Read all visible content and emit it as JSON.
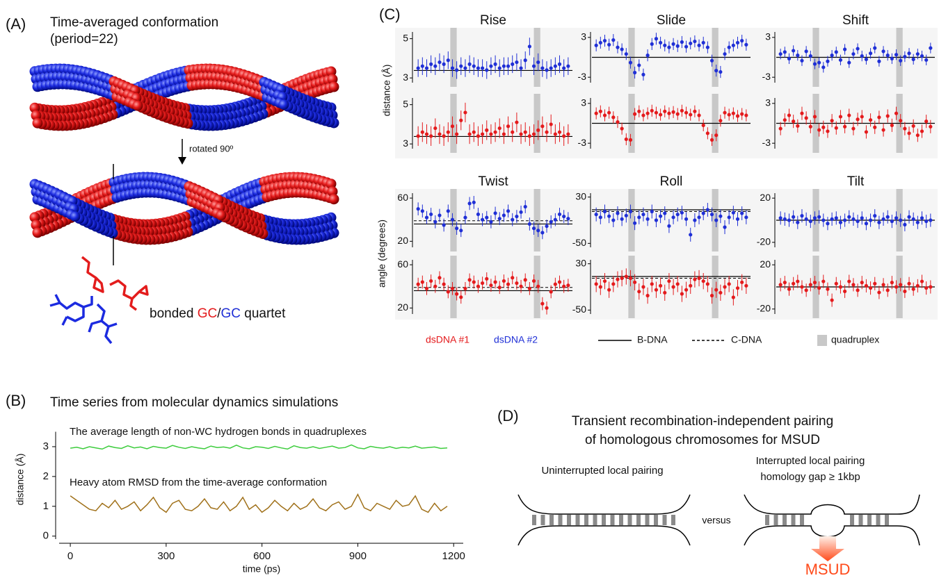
{
  "panel_a": {
    "label": "(A)",
    "title": "Time-averaged conformation",
    "subtitle": "(period=22)",
    "rotation_note": "rotated 90º",
    "quartet_label": [
      "bonded ",
      "GC",
      "/",
      "GC",
      " quartet"
    ]
  },
  "panel_b": {
    "label": "(B)"
  },
  "panel_c": {
    "label": "(C)",
    "y_labels": [
      "distance (Å)",
      "angle (degrees)"
    ],
    "legend": [
      {
        "name": "dsDNA #1",
        "color": "#e41a1c"
      },
      {
        "name": "dsDNA #2",
        "color": "#1f2fd6"
      },
      {
        "name": "B-DNA",
        "style": "solid"
      },
      {
        "name": "C-DNA",
        "style": "dashed"
      },
      {
        "name": "quadruplex",
        "color": "#c8c8c8"
      }
    ]
  },
  "panel_d": {
    "label": "(D)",
    "title": [
      "Transient recombination-independent pairing",
      "of homologous chromosomes for MSUD"
    ],
    "left_caption": "Uninterrupted local pairing",
    "right_caption": [
      "Interrupted local pairing",
      "homology gap ≥ 1kbp"
    ],
    "versus": "versus",
    "outcome": "MSUD"
  },
  "chart_data": [
    {
      "type": "line",
      "title": "Time series from molecular dynamics simulations",
      "xlabel": "time (ps)",
      "ylabel": "distance (Å)",
      "xlim": [
        -35,
        1230
      ],
      "ylim": [
        -0.1,
        3.5
      ],
      "xticks": [
        0,
        300,
        600,
        900,
        1200
      ],
      "yticks": [
        0,
        1,
        2,
        3
      ],
      "x": [
        0,
        20,
        40,
        60,
        80,
        100,
        120,
        140,
        160,
        180,
        200,
        220,
        240,
        260,
        280,
        300,
        320,
        340,
        360,
        380,
        400,
        420,
        440,
        460,
        480,
        500,
        520,
        540,
        560,
        580,
        600,
        620,
        640,
        660,
        680,
        700,
        720,
        740,
        760,
        780,
        800,
        820,
        840,
        860,
        880,
        900,
        920,
        940,
        960,
        980,
        1000,
        1020,
        1040,
        1060,
        1080,
        1100,
        1120,
        1140,
        1160,
        1180
      ],
      "series": [
        {
          "name": "The average length of non-WC hydrogen bonds in quadruplexes",
          "color": "#3ccc3c",
          "values": [
            2.95,
            2.98,
            2.93,
            3.0,
            2.96,
            2.92,
            3.02,
            2.97,
            2.94,
            3.03,
            2.96,
            2.99,
            2.93,
            3.01,
            2.97,
            2.95,
            3.04,
            2.98,
            2.94,
            3.0,
            2.96,
            2.93,
            3.02,
            2.97,
            2.99,
            2.95,
            3.05,
            2.96,
            2.93,
            3.0,
            2.98,
            2.94,
            3.01,
            2.96,
            2.92,
            3.03,
            2.97,
            2.95,
            3.0,
            2.94,
            2.98,
            3.02,
            2.95,
            2.97,
            3.06,
            2.96,
            2.93,
            3.01,
            2.97,
            2.95,
            3.0,
            2.94,
            2.98,
            2.96,
            3.02,
            2.95,
            2.97,
            2.99,
            2.94,
            2.96
          ]
        },
        {
          "name": "Heavy atom RMSD from the time-average conformation",
          "color": "#a0711a",
          "values": [
            1.35,
            1.2,
            1.05,
            0.9,
            0.85,
            1.1,
            0.95,
            1.2,
            0.9,
            1.0,
            1.15,
            0.85,
            1.05,
            1.3,
            0.95,
            0.8,
            1.1,
            1.2,
            0.9,
            0.85,
            1.0,
            1.25,
            0.95,
            0.9,
            1.15,
            0.85,
            1.0,
            1.3,
            0.9,
            1.05,
            0.8,
            0.95,
            1.2,
            1.0,
            0.85,
            1.1,
            0.9,
            1.0,
            1.25,
            0.95,
            0.85,
            1.05,
            1.15,
            0.9,
            1.0,
            1.4,
            0.95,
            0.85,
            1.1,
            1.0,
            0.9,
            1.2,
            1.0,
            1.05,
            1.35,
            0.9,
            0.8,
            1.1,
            0.85,
            1.0
          ]
        }
      ]
    },
    {
      "type": "dotplot",
      "title": "Rise",
      "ylim": [
        2.9,
        5.2
      ],
      "yticks": [
        3,
        5
      ],
      "xlim": [
        0,
        37
      ],
      "quadruplex": [
        [
          8.5,
          10
        ],
        [
          28,
          29.5
        ]
      ],
      "b_dna": 3.38,
      "series": [
        {
          "color": "#1f2fd6",
          "error": 0.45,
          "values": [
            3.5,
            3.6,
            3.5,
            3.7,
            3.6,
            3.8,
            3.7,
            3.9,
            3.5,
            3.4,
            3.6,
            3.5,
            3.7,
            3.6,
            3.5,
            3.5,
            3.4,
            3.6,
            3.7,
            3.5,
            3.6,
            3.6,
            3.7,
            3.8,
            3.5,
            3.9,
            4.6,
            3.6,
            3.8,
            3.5,
            3.4,
            3.5,
            3.6,
            3.7,
            3.5,
            3.6
          ]
        },
        {
          "color": "#e41a1c",
          "error": 0.5,
          "values": [
            3.4,
            3.6,
            3.5,
            3.4,
            3.8,
            3.5,
            3.4,
            3.6,
            3.9,
            3.5,
            4.2,
            4.6,
            3.5,
            3.6,
            3.4,
            3.5,
            3.7,
            3.5,
            3.6,
            3.8,
            3.5,
            3.9,
            3.6,
            4.1,
            3.5,
            3.6,
            3.4,
            3.5,
            3.7,
            3.9,
            3.6,
            4.0,
            3.5,
            3.6,
            3.4,
            3.5
          ]
        }
      ]
    },
    {
      "type": "dotplot",
      "title": "Slide",
      "ylim": [
        -3.4,
        3.4
      ],
      "yticks": [
        -3,
        3
      ],
      "xlim": [
        0,
        37
      ],
      "quadruplex": [
        [
          8.5,
          10
        ],
        [
          28,
          29.5
        ]
      ],
      "b_dna": 0,
      "series": [
        {
          "color": "#1f2fd6",
          "error": 0.9,
          "values": [
            1.8,
            2.2,
            2.5,
            1.9,
            2.6,
            1.5,
            1.2,
            0.5,
            -0.8,
            -2.3,
            -1.2,
            -2.6,
            0.3,
            2.0,
            2.8,
            2.2,
            1.8,
            1.5,
            2.0,
            1.7,
            2.3,
            1.6,
            2.1,
            2.4,
            1.8,
            2.2,
            1.5,
            -0.5,
            -2.0,
            -2.2,
            0.5,
            1.5,
            1.8,
            2.2,
            2.5,
            1.9
          ]
        },
        {
          "color": "#e41a1c",
          "error": 0.9,
          "values": [
            1.5,
            1.8,
            1.2,
            1.6,
            0.9,
            0.2,
            -0.8,
            -2.4,
            -2.5,
            1.4,
            1.8,
            1.2,
            1.5,
            1.9,
            1.6,
            1.3,
            1.8,
            1.5,
            1.7,
            1.4,
            1.9,
            1.6,
            1.3,
            1.8,
            1.2,
            -0.3,
            -1.5,
            -2.5,
            -1.8,
            0.4,
            1.6,
            1.3,
            1.5,
            1.1,
            1.4,
            1.2
          ]
        }
      ]
    },
    {
      "type": "dotplot",
      "title": "Shift",
      "ylim": [
        -3.4,
        3.4
      ],
      "yticks": [
        -3,
        3
      ],
      "xlim": [
        0,
        37
      ],
      "quadruplex": [
        [
          8.5,
          10
        ],
        [
          28,
          29.5
        ]
      ],
      "b_dna": 0,
      "series": [
        {
          "color": "#1f2fd6",
          "error": 0.8,
          "values": [
            0.5,
            0.8,
            -0.2,
            1.0,
            0.3,
            -0.5,
            0.9,
            0.2,
            -1.0,
            -0.8,
            -1.5,
            -0.6,
            0.3,
            0.8,
            -0.4,
            1.2,
            -0.8,
            0.5,
            1.3,
            0.2,
            -0.3,
            0.6,
            1.4,
            -0.6,
            0.9,
            0.3,
            -0.2,
            0.4,
            -0.5,
            0.1,
            0.6,
            -0.3,
            0.5,
            0.2,
            -0.4,
            1.4
          ]
        },
        {
          "color": "#e41a1c",
          "error": 1.0,
          "values": [
            -0.8,
            0.5,
            1.2,
            0.3,
            -0.4,
            1.5,
            0.8,
            -0.5,
            1.0,
            -1.0,
            -0.6,
            -1.2,
            0.4,
            -0.7,
            1.0,
            -0.5,
            1.2,
            -0.8,
            0.6,
            1.0,
            -1.3,
            0.5,
            -0.6,
            0.9,
            -1.0,
            1.1,
            -0.3,
            1.5,
            0.4,
            -0.8,
            -1.5,
            -0.4,
            -1.8,
            -1.2,
            0.3,
            -0.5
          ]
        }
      ]
    },
    {
      "type": "dotplot",
      "title": "Twist",
      "ylim": [
        17,
        62
      ],
      "yticks": [
        20,
        60
      ],
      "xlim": [
        0,
        37
      ],
      "quadruplex": [
        [
          8.5,
          10
        ],
        [
          28,
          29.5
        ]
      ],
      "b_dna": 36,
      "c_dna": 39,
      "series": [
        {
          "color": "#1f2fd6",
          "error": 6,
          "values": [
            50,
            48,
            42,
            45,
            38,
            44,
            35,
            48,
            40,
            32,
            30,
            42,
            55,
            56,
            45,
            40,
            42,
            38,
            46,
            41,
            44,
            48,
            40,
            43,
            47,
            52,
            36,
            32,
            30,
            28,
            34,
            38,
            40,
            45,
            43,
            41
          ]
        },
        {
          "color": "#e41a1c",
          "error": 6,
          "values": [
            42,
            44,
            38,
            45,
            40,
            48,
            42,
            35,
            38,
            33,
            30,
            38,
            46,
            44,
            40,
            43,
            47,
            41,
            44,
            39,
            45,
            42,
            48,
            43,
            40,
            46,
            38,
            45,
            40,
            24,
            20,
            35,
            42,
            44,
            40,
            41
          ]
        }
      ]
    },
    {
      "type": "dotplot",
      "title": "Roll",
      "ylim": [
        -52,
        32
      ],
      "yticks": [
        -50,
        30
      ],
      "xlim": [
        0,
        37
      ],
      "quadruplex": [
        [
          8.5,
          10
        ],
        [
          28,
          29.5
        ]
      ],
      "b_dna": 8,
      "c_dna": 5,
      "series": [
        {
          "color": "#1f2fd6",
          "error": 12,
          "values": [
            0,
            -5,
            5,
            -3,
            -10,
            2,
            -8,
            -2,
            5,
            -15,
            -5,
            0,
            -8,
            5,
            -10,
            -3,
            2,
            -20,
            -5,
            0,
            3,
            -8,
            -35,
            -10,
            -5,
            2,
            8,
            0,
            -10,
            -3,
            -22,
            -5,
            3,
            -8,
            2,
            -5
          ]
        },
        {
          "color": "#e41a1c",
          "error": 14,
          "values": [
            -5,
            -10,
            0,
            -15,
            -5,
            3,
            5,
            8,
            5,
            -2,
            -18,
            -10,
            -25,
            -5,
            -15,
            -8,
            -20,
            0,
            -10,
            -5,
            -22,
            -15,
            -8,
            3,
            5,
            0,
            -5,
            -25,
            -15,
            -20,
            -10,
            -5,
            -28,
            -12,
            -2,
            -8
          ]
        }
      ]
    },
    {
      "type": "dotplot",
      "title": "Tilt",
      "ylim": [
        -22,
        22
      ],
      "yticks": [
        -20,
        20
      ],
      "xlim": [
        0,
        37
      ],
      "quadruplex": [
        [
          8.5,
          10
        ],
        [
          28,
          29.5
        ]
      ],
      "b_dna": 0,
      "series": [
        {
          "color": "#1f2fd6",
          "error": 6,
          "values": [
            2,
            1,
            0,
            3,
            -2,
            4,
            1,
            -1,
            2,
            3,
            0,
            -3,
            1,
            2,
            -2,
            0,
            3,
            1,
            -1,
            2,
            -3,
            0,
            4,
            -2,
            1,
            3,
            -1,
            2,
            0,
            -4,
            3,
            1,
            -2,
            2,
            -1,
            0
          ]
        },
        {
          "color": "#e41a1c",
          "error": 6,
          "values": [
            2,
            4,
            -2,
            3,
            5,
            0,
            -3,
            2,
            4,
            -1,
            5,
            -2,
            -12,
            3,
            0,
            -4,
            5,
            2,
            -3,
            4,
            1,
            -1,
            3,
            -5,
            2,
            -3,
            4,
            0,
            2,
            -4,
            3,
            -2,
            1,
            5,
            -1,
            0
          ]
        }
      ]
    }
  ]
}
